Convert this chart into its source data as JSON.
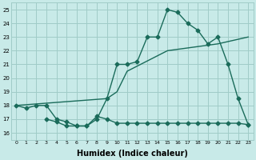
{
  "bg_color": "#c8eae8",
  "grid_color": "#a0ccc8",
  "line_color": "#1a6b5a",
  "markersize": 2.5,
  "linewidth": 1.0,
  "xlabel": "Humidex (Indice chaleur)",
  "xlabel_fontsize": 7,
  "xlim": [
    -0.5,
    23.5
  ],
  "ylim": [
    15.5,
    25.5
  ],
  "yticks": [
    16,
    17,
    18,
    19,
    20,
    21,
    22,
    23,
    24,
    25
  ],
  "xticks": [
    0,
    1,
    2,
    3,
    4,
    5,
    6,
    7,
    8,
    9,
    10,
    11,
    12,
    13,
    14,
    15,
    16,
    17,
    18,
    19,
    20,
    21,
    22,
    23
  ],
  "curve1_x": [
    0,
    1,
    2,
    3,
    4,
    5,
    6,
    7,
    8,
    9,
    10,
    11,
    12,
    13,
    14,
    15,
    16,
    17,
    18,
    19,
    20,
    21,
    22,
    23
  ],
  "curve1_y": [
    18.0,
    17.8,
    18.0,
    18.0,
    17.0,
    16.8,
    16.5,
    16.5,
    17.0,
    18.5,
    21.0,
    21.0,
    21.2,
    23.0,
    23.0,
    25.0,
    24.8,
    24.0,
    23.5,
    22.5,
    23.0,
    21.0,
    18.5,
    16.6
  ],
  "curve2_x": [
    0,
    9,
    10,
    11,
    15,
    20,
    23
  ],
  "curve2_y": [
    18.0,
    18.5,
    19.0,
    20.5,
    22.0,
    22.5,
    23.0
  ],
  "curve3_x": [
    3,
    4,
    5,
    6,
    7,
    8,
    9,
    10,
    11,
    12,
    13,
    14,
    15,
    16,
    17,
    18,
    19,
    20,
    21,
    22,
    23
  ],
  "curve3_y": [
    17.0,
    16.8,
    16.5,
    16.5,
    16.5,
    17.2,
    17.0,
    16.7,
    16.7,
    16.7,
    16.7,
    16.7,
    16.7,
    16.7,
    16.7,
    16.7,
    16.7,
    16.7,
    16.7,
    16.7,
    16.6
  ]
}
